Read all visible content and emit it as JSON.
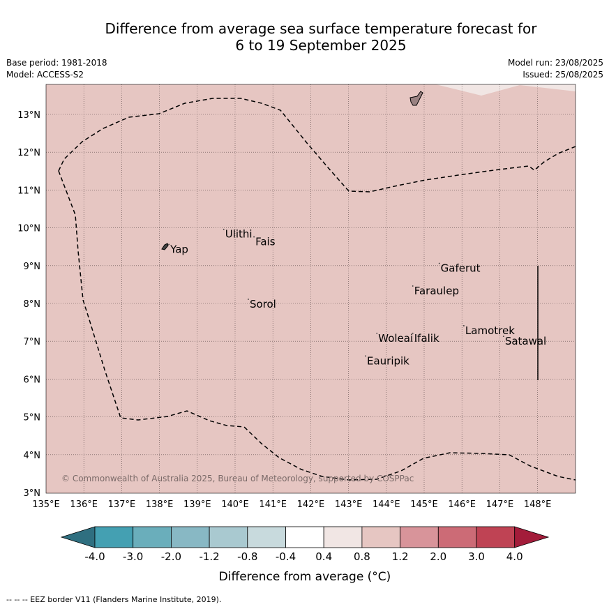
{
  "header": {
    "title_line1": "Difference from average sea surface temperature forecast for",
    "title_line2": "6 to 19 September 2025",
    "base_period": "Base period: 1981-2018",
    "model": "Model: ACCESS-S2",
    "model_run": "Model run: 23/08/2025",
    "issued": "Issued: 25/08/2025"
  },
  "map": {
    "background_color": "#e6c6c2",
    "lon_ticks": [
      "135°E",
      "136°E",
      "137°E",
      "138°E",
      "139°E",
      "140°E",
      "141°E",
      "142°E",
      "143°E",
      "144°E",
      "145°E",
      "146°E",
      "147°E",
      "148°E"
    ],
    "lat_ticks": [
      "13°N",
      "12°N",
      "11°N",
      "10°N",
      "9°N",
      "8°N",
      "7°N",
      "6°N",
      "5°N",
      "4°N",
      "3°N"
    ],
    "places": [
      {
        "name": "Yap",
        "lon": 138.25,
        "lat": 9.45
      },
      {
        "name": "Ulithi",
        "lon": 139.7,
        "lat": 9.85
      },
      {
        "name": "Fais",
        "lon": 140.5,
        "lat": 9.65
      },
      {
        "name": "Gaferut",
        "lon": 145.4,
        "lat": 8.95
      },
      {
        "name": "Faraulep",
        "lon": 144.7,
        "lat": 8.35
      },
      {
        "name": "Sorol",
        "lon": 140.35,
        "lat": 8.0
      },
      {
        "name": "Lamotrek",
        "lon": 146.05,
        "lat": 7.3
      },
      {
        "name": "Woleai",
        "lon": 143.75,
        "lat": 7.1
      },
      {
        "name": "Ifalik",
        "lon": 144.7,
        "lat": 7.1
      },
      {
        "name": "Satawal",
        "lon": 147.1,
        "lat": 7.02
      },
      {
        "name": "Eauripik",
        "lon": 143.45,
        "lat": 6.5
      }
    ],
    "copyright": "© Commonwealth of Australia 2025, Bureau of Meteorology, supported by COSPPac"
  },
  "colorbar": {
    "labels": [
      "-4.0",
      "-3.0",
      "-2.0",
      "-1.2",
      "-0.8",
      "-0.4",
      "0.4",
      "0.8",
      "1.2",
      "2.0",
      "3.0",
      "4.0"
    ],
    "colors": [
      "#2f6f80",
      "#44a0b2",
      "#6aaebb",
      "#88b8c4",
      "#a9c9d0",
      "#c8dadd",
      "#ffffff",
      "#f1e6e4",
      "#e6c6c2",
      "#d8949a",
      "#cc6b76",
      "#bf4354",
      "#a31c3a"
    ],
    "label": "Difference from average (°C)"
  },
  "footnote": "-- -- -- EEZ border V11 (Flanders Marine Institute, 2019)."
}
